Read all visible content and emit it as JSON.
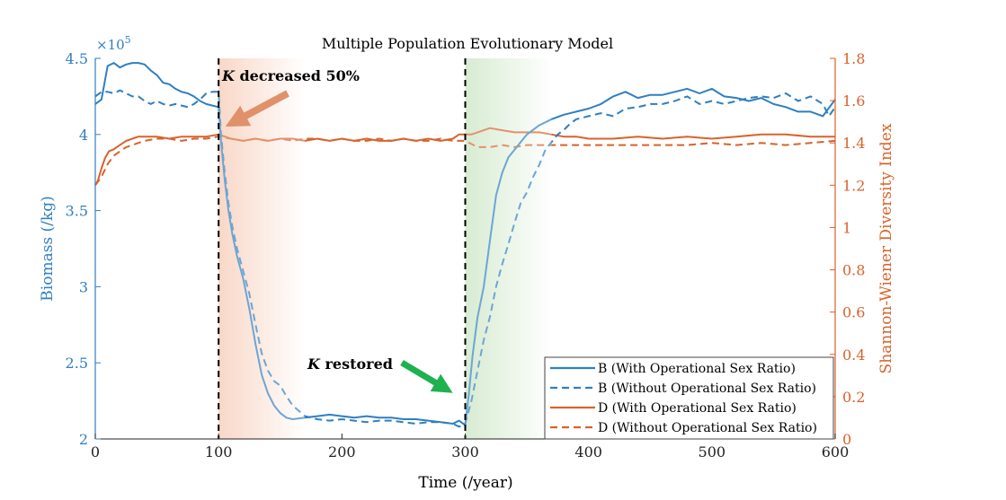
{
  "chart_data": {
    "type": "line",
    "title": "Multiple Population Evolutionary Model",
    "xlabel": "Time (/year)",
    "ylabel_left": "Biomass (/kg)",
    "ylabel_right": "Shannon-Wiener Diversity Index",
    "left_multiplier": "×10",
    "left_multiplier_exp": "5",
    "xlim": [
      0,
      600
    ],
    "ylim_left": [
      2,
      4.5
    ],
    "ylim_right": [
      0,
      1.8
    ],
    "x_ticks": [
      "0",
      "100",
      "200",
      "300",
      "400",
      "500",
      "600"
    ],
    "y_left_ticks": [
      "2",
      "2.5",
      "3",
      "3.5",
      "4",
      "4.5"
    ],
    "y_right_ticks": [
      "0",
      "0.2",
      "0.4",
      "0.6",
      "0.8",
      "1",
      "1.2",
      "1.4",
      "1.6",
      "1.8"
    ],
    "grid": false,
    "legend_position": "bottom-right",
    "colors": {
      "biomass": "#2f7fc1",
      "diversity": "#d9622b",
      "decrease_shade": "#f6c7b0",
      "restore_shade": "#c6e3bf",
      "arrow_decrease": "#e0916a",
      "arrow_restore": "#1fb14e"
    },
    "annotations": {
      "decrease_k": "K",
      "decrease_text": " decreased 50%",
      "restore_k": "K",
      "restore_text": " restored"
    },
    "event_lines_x": [
      100,
      300
    ],
    "series": [
      {
        "name": "B (With Operational Sex Ratio)",
        "axis": "left",
        "dash": "solid",
        "x": [
          0,
          5,
          10,
          15,
          20,
          25,
          30,
          35,
          40,
          45,
          50,
          55,
          60,
          65,
          70,
          75,
          80,
          85,
          90,
          95,
          100,
          102,
          105,
          108,
          111,
          115,
          120,
          125,
          130,
          135,
          140,
          145,
          150,
          155,
          160,
          170,
          180,
          190,
          200,
          210,
          220,
          230,
          240,
          250,
          260,
          270,
          280,
          290,
          295,
          300,
          303,
          306,
          310,
          315,
          320,
          325,
          330,
          335,
          340,
          345,
          350,
          355,
          360,
          365,
          370,
          380,
          390,
          400,
          410,
          420,
          430,
          440,
          450,
          460,
          470,
          480,
          490,
          500,
          510,
          520,
          530,
          540,
          550,
          560,
          570,
          580,
          590,
          600
        ],
        "values": [
          4.2,
          4.23,
          4.45,
          4.47,
          4.44,
          4.46,
          4.47,
          4.47,
          4.46,
          4.42,
          4.39,
          4.34,
          4.33,
          4.3,
          4.28,
          4.27,
          4.25,
          4.22,
          4.2,
          4.19,
          4.18,
          3.95,
          3.7,
          3.5,
          3.35,
          3.2,
          3.05,
          2.85,
          2.62,
          2.42,
          2.3,
          2.22,
          2.17,
          2.14,
          2.13,
          2.14,
          2.15,
          2.16,
          2.15,
          2.14,
          2.15,
          2.14,
          2.14,
          2.13,
          2.13,
          2.12,
          2.11,
          2.1,
          2.12,
          2.09,
          2.3,
          2.55,
          2.8,
          3.0,
          3.3,
          3.6,
          3.75,
          3.85,
          3.9,
          3.95,
          4.0,
          4.03,
          4.06,
          4.08,
          4.1,
          4.13,
          4.15,
          4.17,
          4.2,
          4.25,
          4.28,
          4.24,
          4.26,
          4.26,
          4.28,
          4.3,
          4.27,
          4.3,
          4.25,
          4.24,
          4.22,
          4.24,
          4.2,
          4.18,
          4.15,
          4.15,
          4.12,
          4.23
        ]
      },
      {
        "name": "B (Without Operational Sex Ratio)",
        "axis": "left",
        "dash": "dash",
        "x": [
          0,
          5,
          10,
          15,
          20,
          25,
          30,
          35,
          40,
          45,
          50,
          55,
          60,
          65,
          70,
          75,
          80,
          85,
          90,
          95,
          100,
          102,
          105,
          108,
          111,
          115,
          120,
          125,
          130,
          135,
          140,
          145,
          150,
          155,
          160,
          170,
          180,
          190,
          200,
          210,
          220,
          230,
          240,
          250,
          260,
          270,
          280,
          290,
          295,
          300,
          305,
          310,
          315,
          320,
          325,
          330,
          335,
          340,
          345,
          350,
          355,
          360,
          365,
          370,
          375,
          380,
          385,
          390,
          400,
          410,
          420,
          430,
          440,
          450,
          460,
          470,
          480,
          490,
          500,
          510,
          520,
          530,
          540,
          550,
          560,
          570,
          580,
          590,
          595,
          600
        ],
        "values": [
          4.25,
          4.28,
          4.28,
          4.27,
          4.29,
          4.27,
          4.25,
          4.25,
          4.22,
          4.2,
          4.22,
          4.2,
          4.19,
          4.2,
          4.19,
          4.18,
          4.2,
          4.23,
          4.27,
          4.28,
          4.28,
          4.0,
          3.75,
          3.55,
          3.4,
          3.25,
          3.1,
          2.95,
          2.75,
          2.56,
          2.45,
          2.38,
          2.35,
          2.28,
          2.22,
          2.15,
          2.13,
          2.12,
          2.13,
          2.12,
          2.11,
          2.12,
          2.12,
          2.11,
          2.1,
          2.11,
          2.11,
          2.1,
          2.08,
          2.1,
          2.25,
          2.45,
          2.65,
          2.8,
          3.0,
          3.15,
          3.28,
          3.42,
          3.55,
          3.62,
          3.72,
          3.8,
          3.9,
          3.95,
          4.0,
          4.03,
          4.07,
          4.1,
          4.12,
          4.14,
          4.12,
          4.17,
          4.18,
          4.2,
          4.2,
          4.22,
          4.25,
          4.2,
          4.22,
          4.2,
          4.22,
          4.24,
          4.25,
          4.24,
          4.27,
          4.22,
          4.25,
          4.2,
          4.12,
          4.18
        ]
      },
      {
        "name": "D (With Operational Sex Ratio)",
        "axis": "right",
        "dash": "solid",
        "x": [
          0,
          2,
          5,
          8,
          11,
          15,
          20,
          25,
          30,
          35,
          40,
          50,
          60,
          70,
          80,
          90,
          100,
          110,
          120,
          130,
          140,
          150,
          160,
          170,
          180,
          190,
          200,
          210,
          220,
          230,
          240,
          250,
          260,
          270,
          280,
          290,
          295,
          300,
          305,
          310,
          315,
          320,
          330,
          340,
          350,
          360,
          370,
          380,
          390,
          400,
          420,
          440,
          460,
          480,
          500,
          520,
          540,
          560,
          580,
          600
        ],
        "values": [
          1.2,
          1.22,
          1.28,
          1.33,
          1.36,
          1.37,
          1.39,
          1.41,
          1.42,
          1.43,
          1.43,
          1.43,
          1.42,
          1.43,
          1.43,
          1.43,
          1.44,
          1.42,
          1.41,
          1.42,
          1.41,
          1.42,
          1.42,
          1.41,
          1.42,
          1.41,
          1.42,
          1.41,
          1.42,
          1.41,
          1.41,
          1.42,
          1.41,
          1.42,
          1.41,
          1.42,
          1.44,
          1.44,
          1.44,
          1.45,
          1.46,
          1.47,
          1.46,
          1.45,
          1.45,
          1.45,
          1.44,
          1.43,
          1.43,
          1.42,
          1.42,
          1.43,
          1.42,
          1.43,
          1.42,
          1.43,
          1.44,
          1.44,
          1.43,
          1.43
        ]
      },
      {
        "name": "D (Without Operational Sex Ratio)",
        "axis": "right",
        "dash": "dash",
        "x": [
          0,
          5,
          10,
          15,
          20,
          25,
          30,
          35,
          40,
          50,
          60,
          70,
          80,
          90,
          100,
          110,
          120,
          130,
          140,
          150,
          160,
          170,
          180,
          190,
          200,
          210,
          220,
          230,
          240,
          250,
          260,
          270,
          280,
          290,
          300,
          310,
          320,
          330,
          340,
          350,
          360,
          370,
          380,
          390,
          400,
          420,
          440,
          460,
          480,
          500,
          520,
          540,
          560,
          580,
          600
        ],
        "values": [
          1.2,
          1.24,
          1.3,
          1.34,
          1.36,
          1.38,
          1.39,
          1.4,
          1.41,
          1.42,
          1.42,
          1.41,
          1.42,
          1.42,
          1.43,
          1.42,
          1.41,
          1.42,
          1.41,
          1.42,
          1.41,
          1.42,
          1.42,
          1.41,
          1.42,
          1.41,
          1.41,
          1.42,
          1.41,
          1.42,
          1.41,
          1.41,
          1.42,
          1.41,
          1.41,
          1.38,
          1.38,
          1.39,
          1.38,
          1.39,
          1.39,
          1.39,
          1.39,
          1.39,
          1.39,
          1.39,
          1.39,
          1.39,
          1.39,
          1.4,
          1.39,
          1.4,
          1.39,
          1.4,
          1.41
        ]
      }
    ]
  }
}
